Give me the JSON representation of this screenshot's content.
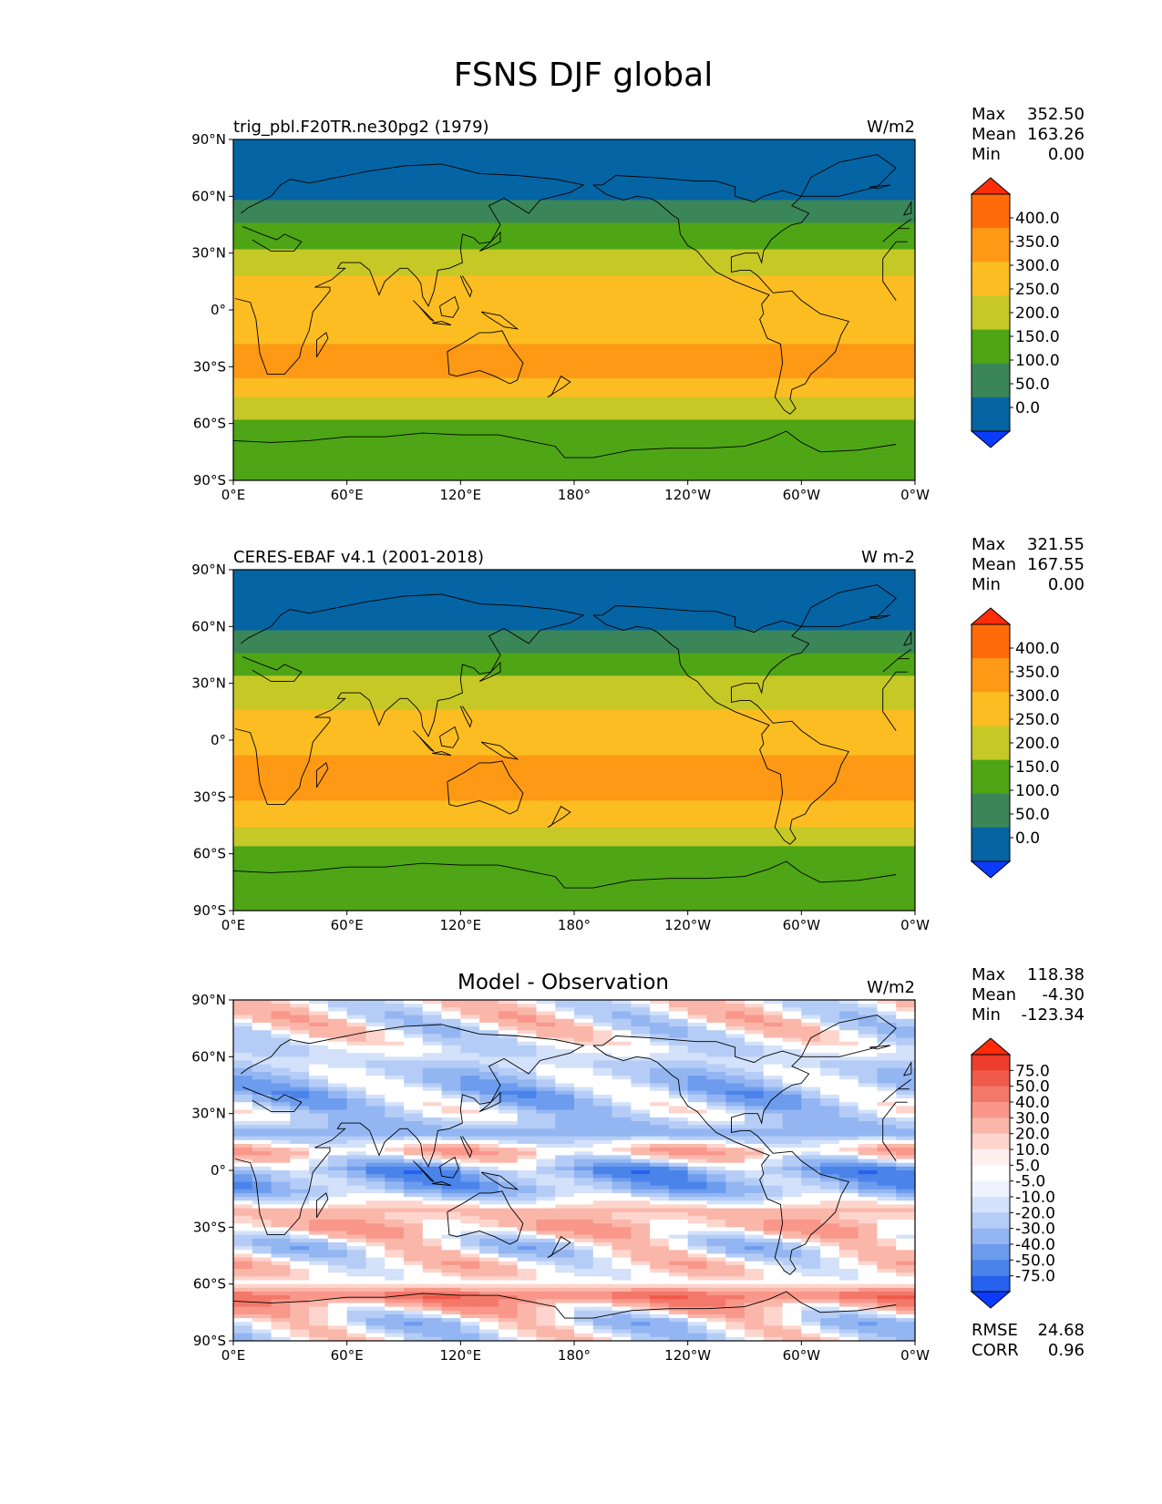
{
  "figure": {
    "title": "FSNS DJF global"
  },
  "colors": {
    "seq": [
      "#0a3bff",
      "#0564a3",
      "#3a8659",
      "#4ea515",
      "#c6c826",
      "#fbbd21",
      "#fd9914",
      "#ff6b08",
      "#ff2d08"
    ],
    "diff": [
      "#0a3bff",
      "#2662ee",
      "#4a84ea",
      "#6d9cee",
      "#93b6f2",
      "#b5cdf6",
      "#d3e1fa",
      "#eef3ff",
      "#ffffff",
      "#fff0ee",
      "#fdd5cd",
      "#fbb6aa",
      "#f8978a",
      "#f4786a",
      "#f05a4b",
      "#ec3d2d",
      "#ff2a08"
    ],
    "land_outline": "#000000"
  },
  "chart_data": [
    {
      "type": "heatmap",
      "panel": "model",
      "title_left": "trig_pbl.F20TR.ne30pg2 (1979)",
      "title_center": "",
      "units": "W/m2",
      "stats": {
        "max_label": "Max",
        "max": "352.50",
        "mean_label": "Mean",
        "mean": "163.26",
        "min_label": "Min",
        "min": "0.00"
      },
      "xticks": [
        "0°E",
        "60°E",
        "120°E",
        "180°",
        "120°W",
        "60°W",
        "0°W"
      ],
      "yticks": [
        "90°N",
        "60°N",
        "30°N",
        "0°",
        "30°S",
        "60°S",
        "90°S"
      ],
      "xlim": [
        0,
        360
      ],
      "ylim": [
        -90,
        90
      ],
      "levels": [
        "0.0",
        "50.0",
        "100.0",
        "150.0",
        "200.0",
        "250.0",
        "300.0",
        "350.0",
        "400.0"
      ],
      "colormap": "seq",
      "zonal_profile_lat": [
        90,
        85,
        75,
        60,
        48,
        35,
        25,
        15,
        0,
        -10,
        -20,
        -30,
        -40,
        -50,
        -58,
        -66,
        -72,
        -80,
        -90
      ],
      "zonal_profile_value": [
        5,
        40,
        40,
        45,
        95,
        140,
        175,
        215,
        230,
        225,
        260,
        265,
        235,
        180,
        150,
        140,
        110,
        110,
        110
      ]
    },
    {
      "type": "heatmap",
      "panel": "observation",
      "title_left": "CERES-EBAF v4.1 (2001-2018)",
      "title_center": "",
      "units": "W m-2",
      "stats": {
        "max_label": "Max",
        "max": "321.55",
        "mean_label": "Mean",
        "mean": "167.55",
        "min_label": "Min",
        "min": "0.00"
      },
      "xticks": [
        "0°E",
        "60°E",
        "120°E",
        "180°",
        "120°W",
        "60°W",
        "0°W"
      ],
      "yticks": [
        "90°N",
        "60°N",
        "30°N",
        "0°",
        "30°S",
        "60°S",
        "90°S"
      ],
      "xlim": [
        0,
        360
      ],
      "ylim": [
        -90,
        90
      ],
      "levels": [
        "0.0",
        "50.0",
        "100.0",
        "150.0",
        "200.0",
        "250.0",
        "300.0",
        "350.0",
        "400.0"
      ],
      "colormap": "seq",
      "zonal_profile_lat": [
        90,
        85,
        75,
        60,
        48,
        35,
        25,
        15,
        0,
        -10,
        -20,
        -30,
        -40,
        -50,
        -58,
        -66,
        -72,
        -80,
        -90
      ],
      "zonal_profile_value": [
        5,
        40,
        40,
        45,
        90,
        145,
        170,
        200,
        235,
        255,
        260,
        255,
        230,
        175,
        145,
        135,
        110,
        110,
        110
      ]
    },
    {
      "type": "heatmap",
      "panel": "difference",
      "title_left": "",
      "title_center": "Model - Observation",
      "units": "W/m2",
      "stats": {
        "max_label": "Max",
        "max": "118.38",
        "mean_label": "Mean",
        "mean": "-4.30",
        "min_label": "Min",
        "min": "-123.34"
      },
      "metrics": {
        "rmse_label": "RMSE",
        "rmse": "24.68",
        "corr_label": "CORR",
        "corr": "0.96"
      },
      "xticks": [
        "0°E",
        "60°E",
        "120°E",
        "180°",
        "120°W",
        "60°W",
        "0°W"
      ],
      "yticks": [
        "90°N",
        "60°N",
        "30°N",
        "0°",
        "30°S",
        "60°S",
        "90°S"
      ],
      "xlim": [
        0,
        360
      ],
      "ylim": [
        -90,
        90
      ],
      "levels": [
        "-75.0",
        "-50.0",
        "-40.0",
        "-30.0",
        "-20.0",
        "-10.0",
        "-5.0",
        "5.0",
        "10.0",
        "20.0",
        "30.0",
        "40.0",
        "50.0",
        "75.0"
      ],
      "colormap": "diff",
      "zonal_profile_lat": [
        90,
        80,
        65,
        50,
        40,
        30,
        20,
        10,
        0,
        -10,
        -20,
        -30,
        -40,
        -50,
        -60,
        -66,
        -72,
        -80,
        -90
      ],
      "zonal_profile_value": [
        0,
        0,
        -5,
        -15,
        -20,
        -10,
        -25,
        15,
        -30,
        -25,
        10,
        15,
        -10,
        5,
        0,
        35,
        15,
        -10,
        -5
      ]
    }
  ]
}
